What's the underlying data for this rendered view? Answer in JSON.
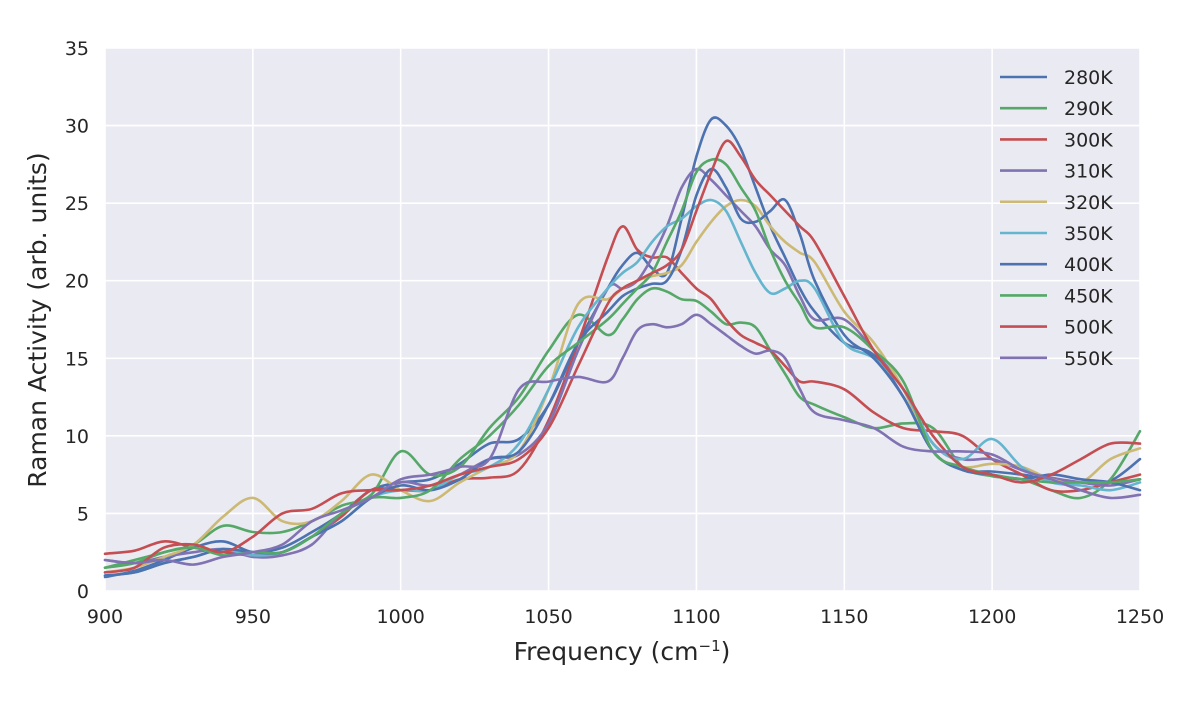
{
  "chart_data": {
    "type": "line",
    "title": "",
    "xlabel": "Frequency (cm",
    "xlabel_sup": "−1",
    "xlabel_end": ")",
    "ylabel": "Raman Activity (arb. units)",
    "xlim": [
      900,
      1250
    ],
    "ylim": [
      0,
      35
    ],
    "xticks": [
      900,
      950,
      1000,
      1050,
      1100,
      1150,
      1200,
      1250
    ],
    "yticks": [
      0,
      5,
      10,
      15,
      20,
      25,
      30,
      35
    ],
    "grid": true,
    "legend_position": "top-right",
    "x": [
      900,
      910,
      920,
      930,
      940,
      950,
      960,
      970,
      980,
      990,
      1000,
      1010,
      1020,
      1030,
      1040,
      1050,
      1060,
      1070,
      1075,
      1080,
      1085,
      1090,
      1095,
      1100,
      1105,
      1110,
      1115,
      1120,
      1125,
      1130,
      1135,
      1140,
      1150,
      1160,
      1170,
      1180,
      1190,
      1200,
      1210,
      1220,
      1230,
      1240,
      1250
    ],
    "series": [
      {
        "name": "280K",
        "color": "#4c72b0",
        "values": [
          0.9,
          1.3,
          2.0,
          2.8,
          3.2,
          2.5,
          2.8,
          3.8,
          5.0,
          6.5,
          7.0,
          7.2,
          8.2,
          9.5,
          9.8,
          12.0,
          16.0,
          19.5,
          21.0,
          21.8,
          20.8,
          20.5,
          24.0,
          28.0,
          30.4,
          30.0,
          28.5,
          26.0,
          23.5,
          21.5,
          19.5,
          18.0,
          16.0,
          15.2,
          12.5,
          9.0,
          7.8,
          7.7,
          7.5,
          7.2,
          7.0,
          7.1,
          8.5
        ]
      },
      {
        "name": "290K",
        "color": "#55a868",
        "values": [
          1.5,
          2.0,
          2.5,
          3.0,
          4.2,
          3.8,
          3.8,
          4.5,
          5.5,
          6.2,
          9.0,
          7.5,
          8.0,
          10.5,
          12.5,
          15.5,
          17.8,
          16.5,
          17.5,
          18.8,
          19.5,
          19.3,
          18.8,
          18.7,
          18.0,
          17.2,
          17.3,
          17.0,
          15.5,
          14.0,
          12.5,
          12.0,
          11.2,
          10.5,
          10.8,
          10.5,
          8.0,
          7.4,
          7.2,
          6.5,
          6.0,
          7.2,
          10.3
        ]
      },
      {
        "name": "300K",
        "color": "#c44e52",
        "values": [
          2.4,
          2.6,
          3.2,
          2.8,
          2.5,
          2.3,
          2.5,
          3.5,
          4.8,
          6.5,
          6.5,
          6.5,
          7.2,
          7.3,
          7.8,
          11.0,
          16.0,
          21.5,
          23.5,
          22.0,
          21.5,
          21.5,
          20.5,
          19.5,
          18.8,
          17.5,
          16.5,
          16.0,
          15.5,
          14.5,
          13.5,
          13.5,
          13.0,
          11.5,
          10.5,
          10.3,
          10.0,
          8.5,
          7.5,
          6.5,
          6.5,
          7.0,
          7.5
        ]
      },
      {
        "name": "310K",
        "color": "#8172b2",
        "values": [
          2.0,
          1.8,
          2.2,
          2.5,
          2.7,
          2.2,
          2.3,
          3.0,
          5.0,
          6.0,
          7.0,
          6.8,
          7.5,
          8.5,
          8.8,
          10.8,
          15.5,
          19.5,
          19.5,
          20.0,
          21.5,
          23.5,
          26.0,
          27.2,
          26.5,
          25.5,
          24.5,
          23.5,
          22.0,
          21.0,
          19.0,
          17.5,
          17.5,
          15.5,
          13.0,
          9.5,
          8.5,
          8.5,
          7.8,
          7.3,
          7.0,
          6.8,
          7.2
        ]
      },
      {
        "name": "320K",
        "color": "#ccb974",
        "values": [
          1.2,
          1.5,
          2.2,
          3.0,
          4.8,
          6.0,
          4.5,
          4.5,
          5.8,
          7.5,
          6.5,
          5.8,
          7.0,
          8.0,
          9.0,
          13.0,
          18.5,
          18.8,
          19.5,
          20.0,
          20.3,
          20.5,
          21.0,
          22.5,
          23.8,
          24.8,
          25.2,
          24.8,
          23.5,
          22.5,
          21.8,
          21.2,
          18.0,
          16.0,
          13.0,
          9.0,
          8.0,
          8.2,
          8.0,
          7.2,
          7.0,
          8.5,
          9.2
        ]
      },
      {
        "name": "350K",
        "color": "#64b5cd",
        "values": [
          1.0,
          1.2,
          1.8,
          2.2,
          2.7,
          2.3,
          2.5,
          3.5,
          4.5,
          6.0,
          6.5,
          6.5,
          7.5,
          8.0,
          9.5,
          13.0,
          17.0,
          19.5,
          20.5,
          21.2,
          22.5,
          23.5,
          24.0,
          24.8,
          25.2,
          24.5,
          22.5,
          20.5,
          19.2,
          19.5,
          20.0,
          19.5,
          16.0,
          15.0,
          13.0,
          9.5,
          8.5,
          9.8,
          8.0,
          7.0,
          6.8,
          6.5,
          7.0
        ]
      },
      {
        "name": "400K",
        "color": "#4c72b0",
        "values": [
          1.0,
          1.2,
          1.8,
          2.2,
          2.7,
          2.5,
          2.5,
          3.5,
          4.5,
          6.0,
          6.8,
          6.5,
          7.2,
          8.5,
          9.0,
          12.0,
          16.0,
          18.0,
          19.0,
          19.5,
          19.8,
          20.0,
          22.0,
          25.5,
          27.2,
          26.0,
          24.0,
          23.8,
          24.5,
          25.2,
          23.0,
          20.0,
          16.5,
          15.0,
          12.5,
          9.0,
          7.8,
          7.5,
          7.2,
          7.5,
          7.2,
          7.0,
          6.5
        ]
      },
      {
        "name": "450K",
        "color": "#55a868",
        "values": [
          1.5,
          1.8,
          2.5,
          2.8,
          2.3,
          2.5,
          2.5,
          3.5,
          5.0,
          6.0,
          6.0,
          6.5,
          8.5,
          10.0,
          12.0,
          14.5,
          16.0,
          17.5,
          18.5,
          19.5,
          20.5,
          22.5,
          24.5,
          27.0,
          27.8,
          27.5,
          26.0,
          24.5,
          22.0,
          20.0,
          18.5,
          17.0,
          17.0,
          15.5,
          13.5,
          9.0,
          8.0,
          7.5,
          7.2,
          7.0,
          7.0,
          7.0,
          7.2
        ]
      },
      {
        "name": "500K",
        "color": "#c44e52",
        "values": [
          1.2,
          1.5,
          2.8,
          3.0,
          2.5,
          3.5,
          5.0,
          5.3,
          6.3,
          6.5,
          6.5,
          6.8,
          7.5,
          8.0,
          8.5,
          10.5,
          14.5,
          18.5,
          19.5,
          20.0,
          20.5,
          21.0,
          22.0,
          24.5,
          27.0,
          29.0,
          28.0,
          26.5,
          25.5,
          24.5,
          23.5,
          22.5,
          19.0,
          15.5,
          13.0,
          10.0,
          8.0,
          7.5,
          7.0,
          7.5,
          8.5,
          9.5,
          9.5
        ]
      },
      {
        "name": "550K",
        "color": "#8172b2",
        "values": [
          2.0,
          1.8,
          2.0,
          1.7,
          2.2,
          2.5,
          3.0,
          4.5,
          5.2,
          6.0,
          7.2,
          7.5,
          8.0,
          8.5,
          13.0,
          13.5,
          13.8,
          13.5,
          15.0,
          16.8,
          17.2,
          17.0,
          17.2,
          17.8,
          17.2,
          16.5,
          15.8,
          15.3,
          15.5,
          15.0,
          13.0,
          11.5,
          11.0,
          10.5,
          9.3,
          9.0,
          9.0,
          8.8,
          7.8,
          7.2,
          6.5,
          6.0,
          6.2
        ]
      }
    ]
  }
}
